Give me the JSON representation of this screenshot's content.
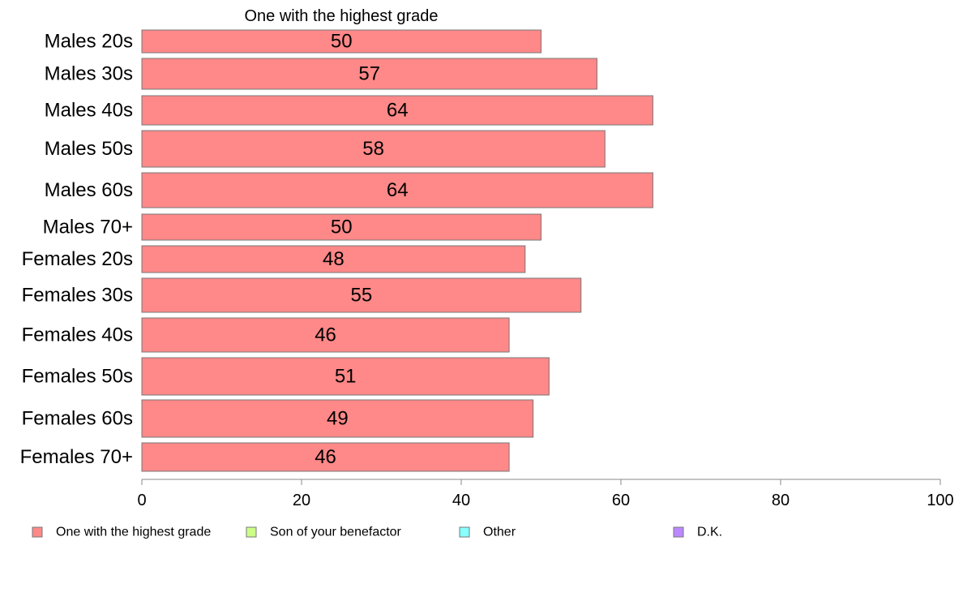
{
  "chart_data": {
    "type": "bar",
    "orientation": "horizontal",
    "title": "One with the highest grade",
    "categories": [
      "Males 20s",
      "Males 30s",
      "Males 40s",
      "Males 50s",
      "Males 60s",
      "Males 70+",
      "Females 20s",
      "Females 30s",
      "Females 40s",
      "Females 50s",
      "Females 60s",
      "Females 70+"
    ],
    "series": [
      {
        "name": "One with the highest grade",
        "values": [
          50,
          57,
          64,
          58,
          64,
          50,
          48,
          55,
          46,
          51,
          49,
          46
        ],
        "color": "#ff8888"
      }
    ],
    "data_labels": [
      "50",
      "57",
      "64",
      "58",
      "64",
      "50",
      "48",
      "55",
      "46",
      "51",
      "49",
      "46"
    ],
    "xlim": [
      0,
      100
    ],
    "xticks": [
      0,
      20,
      40,
      60,
      80,
      100
    ],
    "grid": false,
    "legend": {
      "placement": "bottom",
      "items": [
        {
          "label": "One with the highest grade",
          "color": "#ff8888"
        },
        {
          "label": "Son of your benefactor",
          "color": "#ccff88"
        },
        {
          "label": "Other",
          "color": "#88ffff"
        },
        {
          "label": "D.K.",
          "color": "#bb88ff"
        }
      ]
    }
  }
}
